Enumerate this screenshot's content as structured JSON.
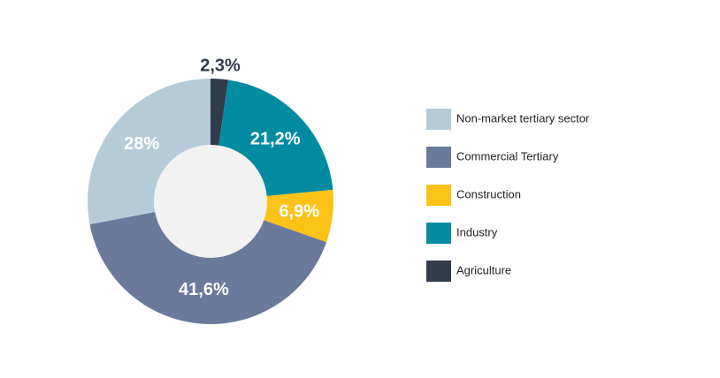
{
  "chart_data": {
    "type": "donut",
    "categories": [
      "Non-market tertiary sector",
      "Commercial Tertiary",
      "Construction",
      "Industry",
      "Agriculture"
    ],
    "values": [
      28,
      41.6,
      6.9,
      21.2,
      2.3
    ],
    "value_labels": [
      "28%",
      "41,6%",
      "6,9%",
      "21,2%",
      "2,3%"
    ],
    "colors": [
      "#b5ccd8",
      "#6a7a9b",
      "#fbc318",
      "#008ba0",
      "#323b4b"
    ]
  }
}
